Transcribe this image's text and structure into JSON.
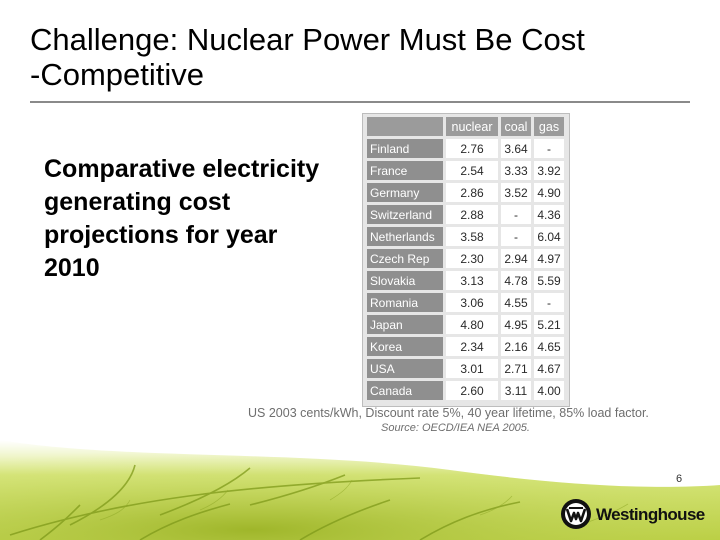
{
  "slide": {
    "title_line1": "Challenge: Nuclear Power Must Be Cost",
    "title_line2": "-Competitive",
    "body_text": "Comparative electricity generating cost projections for year 2010",
    "page_number": "6",
    "logo_text": "Westinghouse"
  },
  "table": {
    "headers": [
      "nuclear",
      "coal",
      "gas"
    ],
    "rows": [
      {
        "country": "Finland",
        "nuclear": "2.76",
        "coal": "3.64",
        "gas": "-"
      },
      {
        "country": "France",
        "nuclear": "2.54",
        "coal": "3.33",
        "gas": "3.92"
      },
      {
        "country": "Germany",
        "nuclear": "2.86",
        "coal": "3.52",
        "gas": "4.90"
      },
      {
        "country": "Switzerland",
        "nuclear": "2.88",
        "coal": "-",
        "gas": "4.36"
      },
      {
        "country": "Netherlands",
        "nuclear": "3.58",
        "coal": "-",
        "gas": "6.04"
      },
      {
        "country": "Czech Rep",
        "nuclear": "2.30",
        "coal": "2.94",
        "gas": "4.97"
      },
      {
        "country": "Slovakia",
        "nuclear": "3.13",
        "coal": "4.78",
        "gas": "5.59"
      },
      {
        "country": "Romania",
        "nuclear": "3.06",
        "coal": "4.55",
        "gas": "-"
      },
      {
        "country": "Japan",
        "nuclear": "4.80",
        "coal": "4.95",
        "gas": "5.21"
      },
      {
        "country": "Korea",
        "nuclear": "2.34",
        "coal": "2.16",
        "gas": "4.65"
      },
      {
        "country": "USA",
        "nuclear": "3.01",
        "coal": "2.71",
        "gas": "4.67"
      },
      {
        "country": "Canada",
        "nuclear": "2.60",
        "coal": "3.11",
        "gas": "4.00"
      }
    ],
    "note": "US 2003 cents/kWh, Discount rate 5%, 40 year lifetime, 85% load factor.",
    "source": "Source: OECD/IEA NEA 2005."
  },
  "colors": {
    "leaf_green": "#c9dc5a",
    "leaf_dark": "#6f8a12",
    "header_gray": "#9b9b9b"
  },
  "icons": {
    "logo_mark": "westinghouse-circle-w-icon"
  }
}
